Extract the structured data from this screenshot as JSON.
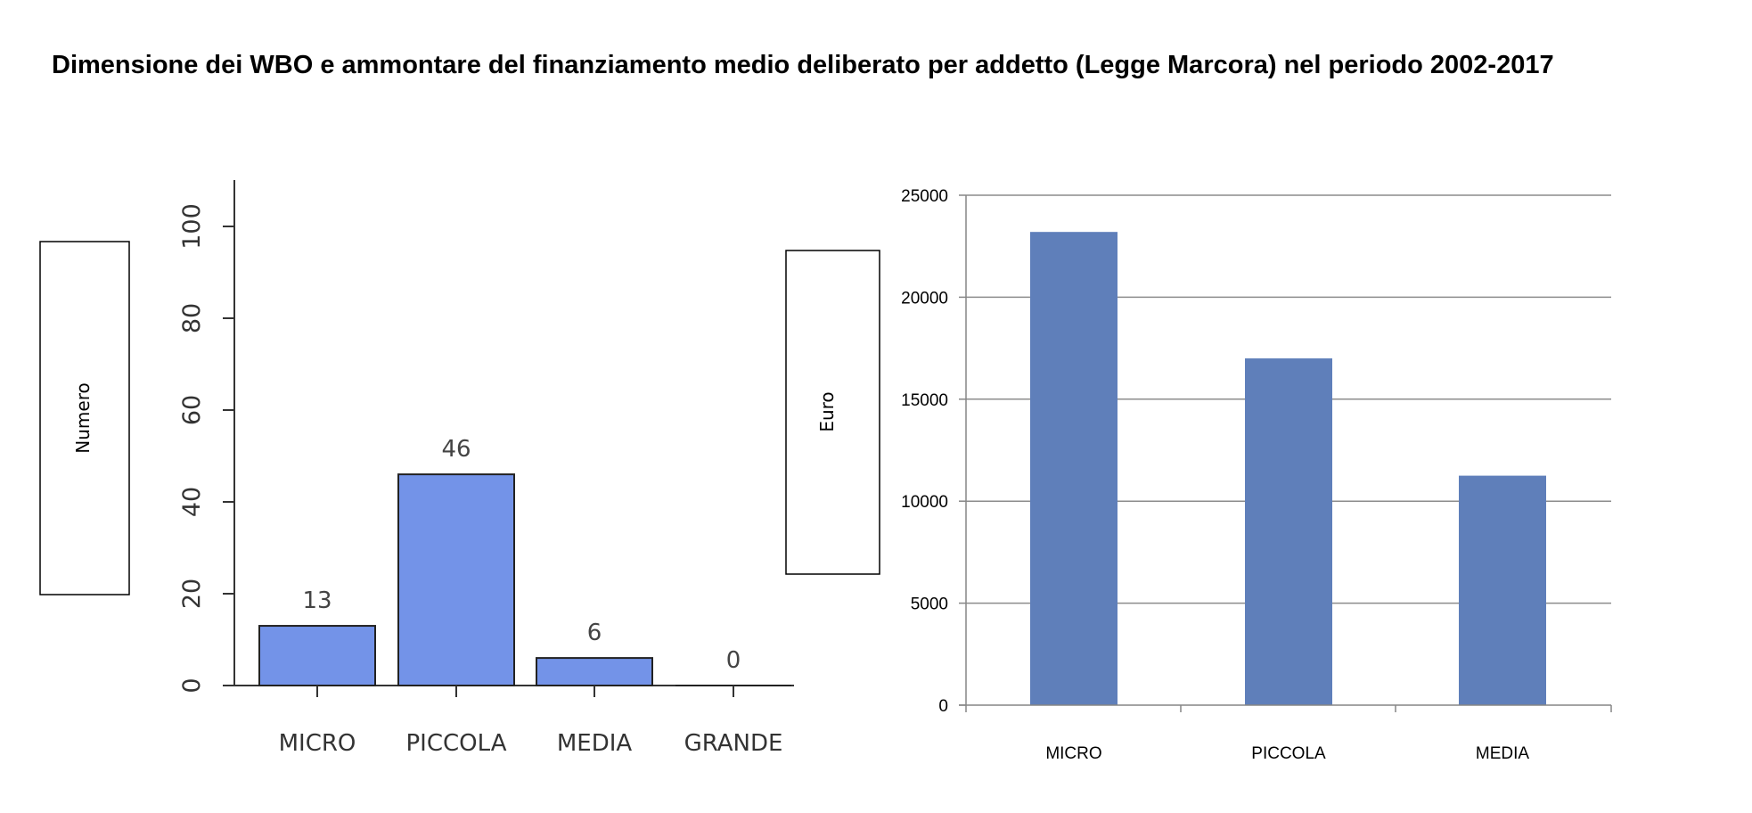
{
  "title": "Dimensione dei WBO e ammontare del finanziamento medio deliberato per addetto (Legge Marcora) nel periodo 2002-2017",
  "chart_data": [
    {
      "type": "bar",
      "categories": [
        "MICRO",
        "PICCOLA",
        "MEDIA",
        "GRANDE"
      ],
      "values": [
        13,
        46,
        6,
        0
      ],
      "data_labels": [
        "13",
        "46",
        "6",
        "0"
      ],
      "ylabel": "Numero",
      "ylim": [
        0,
        110
      ],
      "yticks": [
        0,
        20,
        40,
        60,
        80,
        100
      ],
      "grid": false,
      "bar_color": "#7393e8"
    },
    {
      "type": "bar",
      "categories": [
        "MICRO",
        "PICCOLA",
        "MEDIA"
      ],
      "values": [
        23200,
        17000,
        11250
      ],
      "ylabel": "Euro",
      "ylim": [
        0,
        25000
      ],
      "yticks": [
        0,
        5000,
        10000,
        15000,
        20000,
        25000
      ],
      "grid": true,
      "bar_color": "#5f7fba"
    }
  ]
}
